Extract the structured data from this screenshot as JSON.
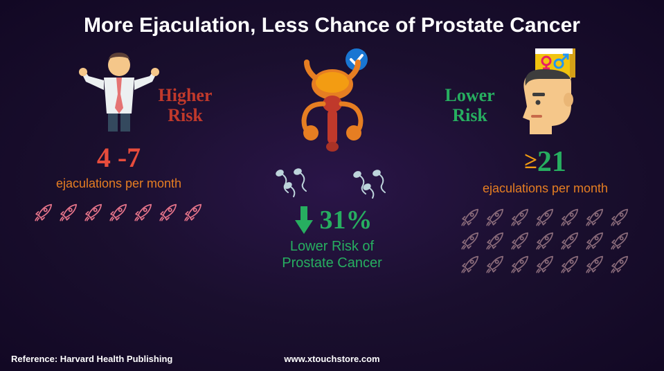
{
  "title": "More Ejaculation, Less Chance of Prostate Cancer",
  "left": {
    "risk_label_line1": "Higher",
    "risk_label_line2": "Risk",
    "number": "4 -7",
    "caption": "ejaculations per month",
    "rocket_count": 7,
    "rocket_color": "#e6748a",
    "label_color": "#c0392b",
    "number_color": "#e74c3c"
  },
  "center": {
    "percent": "31%",
    "caption_line1": "Lower Risk of",
    "caption_line2": "Prostate Cancer",
    "arrow_color": "#27ae60",
    "color": "#27ae60",
    "check_bg": "#1976d2",
    "check_fg": "#ffffff",
    "organ_colors": {
      "main": "#e67e22",
      "accent": "#c0392b",
      "light": "#f5c78a"
    },
    "sperm_color": "#bdd4db"
  },
  "right": {
    "risk_label_line1": "Lower",
    "risk_label_line2": "Risk",
    "number": "≥21",
    "caption": "ejaculations per month",
    "rocket_count": 21,
    "rocket_color": "#8a6b7a",
    "label_color": "#27ae60",
    "number_color": "#27ae60",
    "head_colors": {
      "skin": "#f5c78a",
      "hair": "#3d3d3d",
      "book": "#f1c40f",
      "book_edge": "#d4a017",
      "female": "#e91e63",
      "male": "#2196f3"
    }
  },
  "footer": {
    "reference": "Reference: Harvard Health Publishing",
    "site": "www.xtouchstore.com"
  },
  "styling": {
    "bg_gradient_inner": "#2a1548",
    "bg_gradient_mid": "#1a0f2e",
    "bg_gradient_outer": "#120824",
    "title_color": "#ffffff",
    "title_fontsize": 30,
    "caption_color": "#e67e22",
    "footer_color": "#ffffff"
  }
}
